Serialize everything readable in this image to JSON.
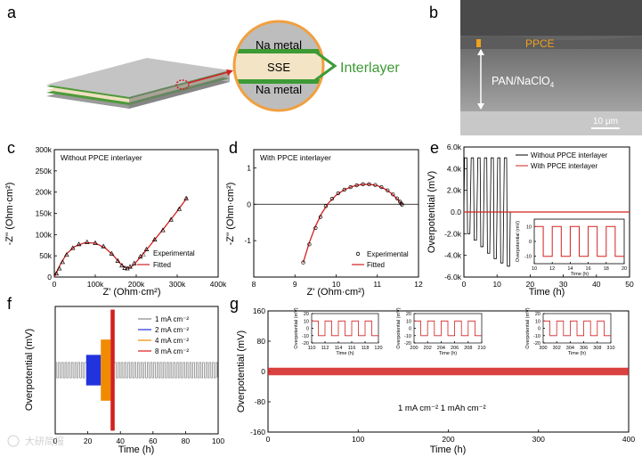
{
  "panels": {
    "a": "a",
    "b": "b",
    "c": "c",
    "d": "d",
    "e": "e",
    "f": "f",
    "g": "g"
  },
  "panel_a": {
    "na_top": "Na metal",
    "sse": "SSE",
    "na_bottom": "Na metal",
    "interlayer": "Interlayer"
  },
  "panel_b": {
    "ppce": "PPCE",
    "pan_main": "PAN/NaClO",
    "pan_sub": "4",
    "scale": "10 μm"
  },
  "watermark": "大研简报",
  "colors": {
    "red": "#d32020",
    "black": "#000000",
    "green": "#3d9a35",
    "orange": "#f0a020",
    "gray": "#888888",
    "blue": "#2233dd",
    "amber": "#f08a00"
  },
  "chart_data": [
    {
      "type": "scatter",
      "title": "Without PPCE interlayer",
      "xlabel": "Z' (Ohm·cm²)",
      "ylabel": "-Z'' (Ohm·cm²)",
      "xlim": [
        0,
        400000
      ],
      "ylim": [
        0,
        300000
      ],
      "xticks": [
        0,
        100000,
        200000,
        300000,
        400000
      ],
      "xtick_labels": [
        "0",
        "100k",
        "200k",
        "300k",
        "400k"
      ],
      "yticks": [
        0,
        50000,
        100000,
        150000,
        200000,
        250000,
        300000
      ],
      "ytick_labels": [
        "0",
        "50k",
        "100k",
        "150k",
        "200k",
        "250k",
        "300k"
      ],
      "legend_loc": "lower-right",
      "series": [
        {
          "name": "Experimental",
          "marker": "triangle",
          "x": [
            5000,
            12000,
            20000,
            30000,
            45000,
            60000,
            80000,
            100000,
            120000,
            140000,
            155000,
            165000,
            172000,
            178000,
            185000,
            195000,
            210000,
            225000,
            245000,
            265000,
            285000,
            305000,
            322000
          ],
          "y": [
            8000,
            20000,
            35000,
            52000,
            68000,
            77000,
            82000,
            80000,
            72000,
            55000,
            38000,
            27000,
            21000,
            20000,
            24000,
            32000,
            48000,
            65000,
            88000,
            110000,
            135000,
            160000,
            185000
          ]
        },
        {
          "name": "Fitted",
          "marker": "line",
          "x": [
            0,
            5000,
            15000,
            30000,
            50000,
            75000,
            100000,
            125000,
            145000,
            160000,
            170000,
            178000,
            185000,
            195000,
            215000,
            240000,
            270000,
            300000,
            325000
          ],
          "y": [
            0,
            10000,
            30000,
            55000,
            72000,
            81000,
            80000,
            68000,
            50000,
            33000,
            24000,
            21000,
            22000,
            30000,
            52000,
            82000,
            118000,
            155000,
            188000
          ]
        }
      ]
    },
    {
      "type": "scatter",
      "title": "With PPCE interlayer",
      "xlabel": "Z' (Ohm·cm²)",
      "ylabel": "-Z'' (Ohm·cm²)",
      "xlim": [
        8,
        12
      ],
      "ylim": [
        -2,
        1.5
      ],
      "xticks": [
        8,
        9,
        10,
        11,
        12
      ],
      "xtick_labels": [
        "8",
        "9",
        "10",
        "11",
        "12"
      ],
      "yticks": [
        -1,
        0,
        1
      ],
      "ytick_labels": [
        "-1",
        "0",
        "1"
      ],
      "legend_loc": "lower-right",
      "series": [
        {
          "name": "Experimental",
          "marker": "circle",
          "x": [
            9.2,
            9.35,
            9.5,
            9.62,
            9.75,
            9.9,
            10.05,
            10.2,
            10.35,
            10.5,
            10.65,
            10.8,
            10.95,
            11.1,
            11.25,
            11.38,
            11.48,
            11.55,
            11.58,
            11.6
          ],
          "y": [
            -1.6,
            -1.1,
            -0.65,
            -0.35,
            -0.05,
            0.15,
            0.3,
            0.4,
            0.47,
            0.52,
            0.55,
            0.55,
            0.53,
            0.47,
            0.38,
            0.27,
            0.16,
            0.07,
            0.02,
            -0.01
          ]
        },
        {
          "name": "Fitted",
          "marker": "line",
          "x": [
            9.2,
            9.35,
            9.5,
            9.65,
            9.8,
            10.0,
            10.2,
            10.4,
            10.6,
            10.8,
            11.0,
            11.2,
            11.35,
            11.48,
            11.57,
            11.6
          ],
          "y": [
            -1.6,
            -1.05,
            -0.6,
            -0.25,
            0.02,
            0.25,
            0.4,
            0.49,
            0.54,
            0.55,
            0.51,
            0.41,
            0.29,
            0.15,
            0.04,
            -0.01
          ]
        }
      ]
    },
    {
      "type": "line",
      "xlabel": "Time (h)",
      "ylabel": "Overpotential (mV)",
      "xlim": [
        0,
        50
      ],
      "ylim": [
        -6000,
        6000
      ],
      "xticks": [
        0,
        10,
        20,
        30,
        40,
        50
      ],
      "xtick_labels": [
        "0",
        "10",
        "20",
        "30",
        "40",
        "50"
      ],
      "yticks": [
        -6000,
        -4000,
        -2000,
        0,
        2000,
        4000,
        6000
      ],
      "ytick_labels": [
        "-6.0k",
        "-4.0k",
        "-2.0k",
        "0.0",
        "2.0k",
        "4.0k",
        "6.0k"
      ],
      "legend_loc": "top-right",
      "series": [
        {
          "name": "Without PPCE interlayer",
          "cycle_period_h": 2,
          "t_end_h": 14,
          "upper_mV": 5000,
          "lower_mV": [
            -2000,
            -2600,
            -3200,
            -3800,
            -4300,
            -4700,
            -5000
          ]
        },
        {
          "name": "With PPCE interlayer",
          "amplitude_mV": 10,
          "t_end_h": 50
        }
      ],
      "inset": {
        "xlabel": "Time (h)",
        "ylabel": "Overpotential (mV)",
        "xlim": [
          10,
          20
        ],
        "ylim": [
          -15,
          15
        ],
        "xticks": [
          10,
          12,
          14,
          16,
          18,
          20
        ],
        "xtick_labels": [
          "10",
          "12",
          "14",
          "16",
          "18",
          "20"
        ],
        "yticks": [
          -10,
          0,
          10
        ],
        "ytick_labels": [
          "-10",
          "0",
          "10"
        ],
        "amplitude_mV": 10,
        "period_h": 2
      }
    },
    {
      "type": "line",
      "xlabel": "Time (h)",
      "ylabel": "Overpotential (mV)",
      "xlim": [
        0,
        100
      ],
      "ylim": [
        -100,
        100
      ],
      "xticks": [
        0,
        20,
        40,
        60,
        80,
        100
      ],
      "xtick_labels": [
        "0",
        "20",
        "40",
        "60",
        "80",
        "100"
      ],
      "legend_loc": "top-right",
      "series": [
        {
          "name": "1 mA cm⁻²",
          "t_range": [
            0,
            100
          ],
          "amplitude_mV": 12,
          "period_h": 2
        },
        {
          "name": "2 mA cm⁻²",
          "t_range": [
            19,
            28
          ],
          "amplitude_mV": 24,
          "period_h": 1
        },
        {
          "name": "4 mA cm⁻²",
          "t_range": [
            28,
            34
          ],
          "amplitude_mV": 48,
          "period_h": 0.5
        },
        {
          "name": "8 mA cm⁻²",
          "t_range": [
            34,
            36.5
          ],
          "amplitude_mV": 95,
          "period_h": 0.25
        }
      ]
    },
    {
      "type": "line",
      "xlabel": "Time (h)",
      "ylabel": "Overpotential (mV)",
      "xlim": [
        0,
        400
      ],
      "ylim": [
        -160,
        160
      ],
      "xticks": [
        0,
        100,
        200,
        300,
        400
      ],
      "xtick_labels": [
        "0",
        "100",
        "200",
        "300",
        "400"
      ],
      "yticks": [
        -160,
        -80,
        0,
        80,
        160
      ],
      "ytick_labels": [
        "-160",
        "-80",
        "0",
        "80",
        "160"
      ],
      "condition": "1 mA cm⁻²   1 mAh cm⁻²",
      "series": [
        {
          "name": "Overpotential",
          "amplitude_mV": 10,
          "period_h": 2
        }
      ],
      "insets": [
        {
          "xlim": [
            110,
            120
          ],
          "xticks": [
            110,
            112,
            114,
            116,
            118,
            120
          ],
          "xtick_labels": [
            "110",
            "112",
            "114",
            "116",
            "118",
            "120"
          ],
          "ylim": [
            -20,
            20
          ],
          "yticks": [
            -20,
            -10,
            0,
            10,
            20
          ],
          "ytick_labels": [
            "-20",
            "-10",
            "0",
            "10",
            "20"
          ],
          "xlabel": "Time (h)",
          "ylabel": "Overpotential (mV)"
        },
        {
          "xlim": [
            200,
            210
          ],
          "xticks": [
            200,
            202,
            204,
            206,
            208,
            210
          ],
          "xtick_labels": [
            "200",
            "202",
            "204",
            "206",
            "208",
            "210"
          ],
          "ylim": [
            -20,
            20
          ],
          "yticks": [
            -20,
            -10,
            0,
            10,
            20
          ],
          "ytick_labels": [
            "-20",
            "-10",
            "0",
            "10",
            "20"
          ],
          "xlabel": "Time (h)",
          "ylabel": "Overpotential (mV)"
        },
        {
          "xlim": [
            300,
            310
          ],
          "xticks": [
            300,
            302,
            304,
            306,
            308,
            310
          ],
          "xtick_labels": [
            "300",
            "302",
            "304",
            "306",
            "308",
            "310"
          ],
          "ylim": [
            -20,
            20
          ],
          "yticks": [
            -20,
            -10,
            0,
            10,
            20
          ],
          "ytick_labels": [
            "-20",
            "-10",
            "0",
            "10",
            "20"
          ],
          "xlabel": "Time (h)",
          "ylabel": "Overpotential (mV)"
        }
      ]
    }
  ]
}
